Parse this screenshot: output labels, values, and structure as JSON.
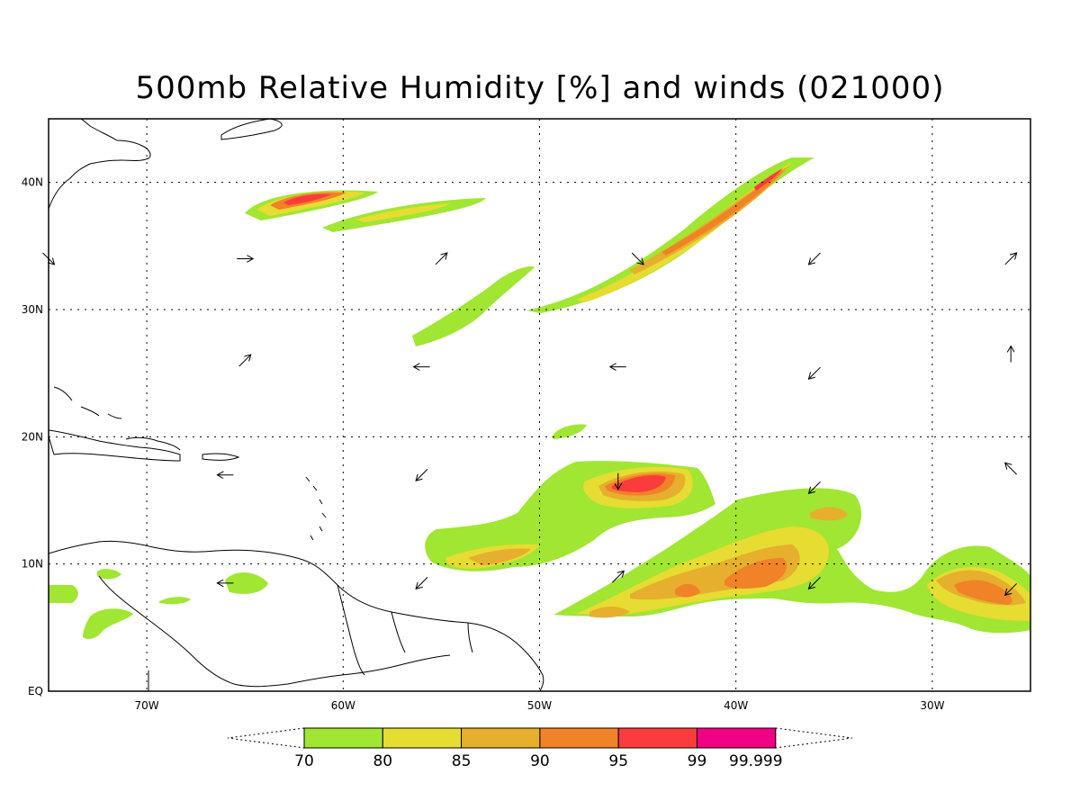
{
  "title": "500mb Relative Humidity [%] and winds (021000)",
  "colors": {
    "c70": "#a0e632",
    "c80": "#e6dc32",
    "c85": "#e6af2d",
    "c90": "#f08228",
    "c95": "#fa3c3c",
    "c99": "#f00082",
    "coast": "#000000",
    "grid": "#000000"
  },
  "axes": {
    "lon_ticks": [
      "70W",
      "60W",
      "50W",
      "40W",
      "30W"
    ],
    "lat_ticks": [
      "EQ",
      "10N",
      "20N",
      "30N",
      "40N"
    ]
  },
  "colorbar": {
    "levels": [
      "70",
      "80",
      "85",
      "90",
      "95",
      "99",
      "99.999"
    ]
  },
  "chart_data": {
    "type": "heatmap",
    "title": "500mb Relative Humidity [%] and winds (021000)",
    "variable": "Relative Humidity [%]",
    "level": "500mb",
    "lon_range": [
      -75,
      -25
    ],
    "lat_range": [
      0,
      45
    ],
    "contour_levels": [
      70,
      80,
      85,
      90,
      95,
      99,
      99.999
    ],
    "features": [
      {
        "name": "moist band near 38N 62W",
        "peak_rh": 95
      },
      {
        "name": "moist band 37N 57W",
        "peak_rh": 80
      },
      {
        "name": "moist filament 32N 53W",
        "peak_rh": 70
      },
      {
        "name": "SW-NE moist band 30N 50W to 42N 37W",
        "peak_rh": 95
      },
      {
        "name": "moist patch 20N 48W",
        "peak_rh": 70
      },
      {
        "name": "moist area 16N 45W",
        "peak_rh": 99
      },
      {
        "name": "moist area 11N 52W",
        "peak_rh": 90
      },
      {
        "name": "ITCZ moist band 6-15N 47W to 25W",
        "peak_rh": 95
      }
    ],
    "wind_vectors": [
      {
        "lon": -75,
        "lat": 34,
        "dir": "SE"
      },
      {
        "lon": -65,
        "lat": 34,
        "dir": "E"
      },
      {
        "lon": -55,
        "lat": 34,
        "dir": "NE"
      },
      {
        "lon": -45,
        "lat": 34,
        "dir": "SE"
      },
      {
        "lon": -36,
        "lat": 34,
        "dir": "SW"
      },
      {
        "lon": -26,
        "lat": 34,
        "dir": "NE"
      },
      {
        "lon": -65,
        "lat": 26,
        "dir": "NE"
      },
      {
        "lon": -56,
        "lat": 25.5,
        "dir": "W"
      },
      {
        "lon": -46,
        "lat": 25.5,
        "dir": "W"
      },
      {
        "lon": -36,
        "lat": 25,
        "dir": "SW"
      },
      {
        "lon": -26,
        "lat": 26.5,
        "dir": "N"
      },
      {
        "lon": -66,
        "lat": 17,
        "dir": "W"
      },
      {
        "lon": -56,
        "lat": 17,
        "dir": "SW"
      },
      {
        "lon": -46,
        "lat": 16.5,
        "dir": "S"
      },
      {
        "lon": -36,
        "lat": 16,
        "dir": "SW"
      },
      {
        "lon": -26,
        "lat": 17.5,
        "dir": "NW"
      },
      {
        "lon": -66,
        "lat": 8.5,
        "dir": "W"
      },
      {
        "lon": -56,
        "lat": 8.5,
        "dir": "SW"
      },
      {
        "lon": -46,
        "lat": 9,
        "dir": "NE"
      },
      {
        "lon": -36,
        "lat": 8.5,
        "dir": "SW"
      },
      {
        "lon": -26,
        "lat": 8,
        "dir": "SW"
      }
    ]
  }
}
